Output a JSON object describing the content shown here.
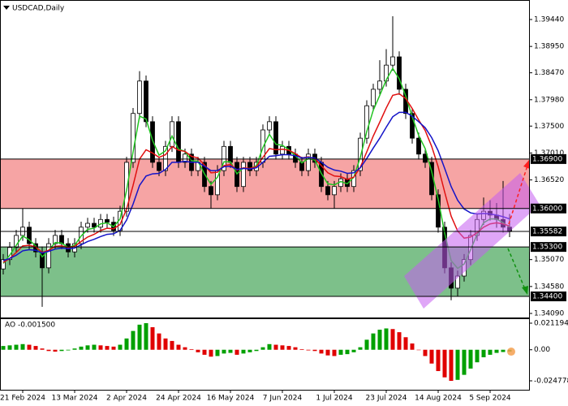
{
  "chart_data": [
    {
      "type": "candlestick",
      "title": "USDCAD,Daily",
      "categories": [
        null,
        null,
        null,
        "21 Feb 2024",
        null,
        null,
        null,
        null,
        null,
        null,
        null,
        "13 Mar 2024",
        null,
        null,
        null,
        null,
        null,
        null,
        null,
        "2 Apr 2024",
        null,
        null,
        null,
        null,
        null,
        null,
        null,
        "24 Apr 2024",
        null,
        null,
        null,
        null,
        null,
        null,
        null,
        "16 May 2024",
        null,
        null,
        null,
        null,
        null,
        null,
        null,
        "7 Jun 2024",
        null,
        null,
        null,
        null,
        null,
        null,
        null,
        "1 Jul 2024",
        null,
        null,
        null,
        null,
        null,
        null,
        null,
        "23 Jul 2024",
        null,
        null,
        null,
        null,
        null,
        null,
        null,
        "14 Aug 2024",
        null,
        null,
        null,
        null,
        null,
        null,
        null,
        "5 Sep 2024",
        null,
        null,
        null
      ],
      "open": [
        1.349,
        1.3507,
        1.3529,
        1.3551,
        1.3566,
        1.3536,
        1.3521,
        1.3492,
        1.3536,
        1.3551,
        1.3536,
        1.3521,
        1.3536,
        1.3566,
        1.3573,
        1.3566,
        1.358,
        1.3575,
        1.356,
        1.3595,
        1.3684,
        1.3773,
        1.3832,
        1.3758,
        1.3684,
        1.3669,
        1.3713,
        1.3758,
        1.3684,
        1.3699,
        1.3669,
        1.3684,
        1.364,
        1.3625,
        1.3669,
        1.3713,
        1.3684,
        1.364,
        1.3684,
        1.3669,
        1.3684,
        1.3743,
        1.3758,
        1.3699,
        1.3713,
        1.3699,
        1.3684,
        1.3669,
        1.3699,
        1.3684,
        1.364,
        1.3625,
        1.364,
        1.3654,
        1.364,
        1.3669,
        1.3728,
        1.3787,
        1.3817,
        1.3832,
        1.3861,
        1.3876,
        1.3817,
        1.3773,
        1.3728,
        1.3699,
        1.3684,
        1.3625,
        1.3566,
        1.3492,
        1.3455,
        1.3477,
        1.3507,
        1.3551,
        1.358,
        1.3595,
        1.3588,
        1.358,
        1.3566
      ],
      "high": [
        1.3517,
        1.3539,
        1.3561,
        1.36,
        1.3576,
        1.3546,
        1.3531,
        1.3546,
        1.3561,
        1.3561,
        1.3546,
        1.3546,
        1.3576,
        1.3583,
        1.3583,
        1.359,
        1.359,
        1.3585,
        1.3605,
        1.3694,
        1.3783,
        1.385,
        1.3842,
        1.3768,
        1.3694,
        1.3723,
        1.3768,
        1.3768,
        1.3709,
        1.3709,
        1.3694,
        1.3694,
        1.365,
        1.3679,
        1.3723,
        1.3723,
        1.3694,
        1.3694,
        1.3694,
        1.3694,
        1.3753,
        1.3768,
        1.3768,
        1.3723,
        1.3723,
        1.3709,
        1.3694,
        1.3709,
        1.3709,
        1.3694,
        1.365,
        1.365,
        1.3664,
        1.3664,
        1.3679,
        1.3738,
        1.3797,
        1.3827,
        1.387,
        1.389,
        1.395,
        1.3886,
        1.3827,
        1.3783,
        1.3738,
        1.3709,
        1.3694,
        1.3635,
        1.3576,
        1.3502,
        1.3487,
        1.3517,
        1.3561,
        1.359,
        1.362,
        1.3615,
        1.361,
        1.365,
        1.359
      ],
      "low": [
        1.348,
        1.3497,
        1.3519,
        1.3541,
        1.3526,
        1.3511,
        1.3421,
        1.3482,
        1.3526,
        1.3526,
        1.3511,
        1.3511,
        1.3526,
        1.3556,
        1.3556,
        1.3556,
        1.3565,
        1.355,
        1.355,
        1.3585,
        1.3674,
        1.3763,
        1.3748,
        1.3674,
        1.3659,
        1.3659,
        1.3703,
        1.3674,
        1.3674,
        1.3659,
        1.3659,
        1.363,
        1.36,
        1.3615,
        1.3659,
        1.3674,
        1.363,
        1.363,
        1.3659,
        1.3659,
        1.3674,
        1.3733,
        1.3689,
        1.3689,
        1.3689,
        1.3674,
        1.3659,
        1.3659,
        1.3674,
        1.363,
        1.3615,
        1.36,
        1.363,
        1.363,
        1.363,
        1.3659,
        1.3718,
        1.3777,
        1.3807,
        1.3822,
        1.3851,
        1.3807,
        1.3763,
        1.3718,
        1.3689,
        1.3674,
        1.3615,
        1.3556,
        1.3482,
        1.3433,
        1.344,
        1.3467,
        1.3497,
        1.3541,
        1.357,
        1.3578,
        1.3565,
        1.3556,
        1.3548
      ],
      "close": [
        1.3507,
        1.3529,
        1.3551,
        1.3566,
        1.3536,
        1.3521,
        1.3492,
        1.3536,
        1.3551,
        1.3536,
        1.3521,
        1.3536,
        1.3566,
        1.3573,
        1.3566,
        1.358,
        1.3575,
        1.356,
        1.3595,
        1.3684,
        1.3773,
        1.3832,
        1.3758,
        1.3684,
        1.3669,
        1.3713,
        1.3758,
        1.3684,
        1.3699,
        1.3669,
        1.3684,
        1.364,
        1.3625,
        1.3669,
        1.3713,
        1.3684,
        1.364,
        1.3684,
        1.3669,
        1.3684,
        1.3743,
        1.3758,
        1.3699,
        1.3713,
        1.3699,
        1.3684,
        1.3669,
        1.3699,
        1.3684,
        1.364,
        1.3625,
        1.364,
        1.3654,
        1.364,
        1.3669,
        1.3728,
        1.3787,
        1.3817,
        1.3832,
        1.3861,
        1.3876,
        1.3817,
        1.3773,
        1.3728,
        1.3699,
        1.3684,
        1.3625,
        1.3566,
        1.3492,
        1.3455,
        1.3477,
        1.3507,
        1.3551,
        1.358,
        1.3595,
        1.3588,
        1.358,
        1.3566,
        1.3558
      ],
      "up_color": "#ffffff",
      "down_color": "#000000",
      "series": [
        {
          "color": "#22c422",
          "values": [
            1.35,
            1.3515,
            1.3533,
            1.355,
            1.3543,
            1.3532,
            1.3512,
            1.3524,
            1.3538,
            1.3537,
            1.3529,
            1.3533,
            1.355,
            1.3562,
            1.3564,
            1.3572,
            1.3574,
            1.3567,
            1.3581,
            1.3633,
            1.3703,
            1.3768,
            1.3763,
            1.3724,
            1.3697,
            1.3705,
            1.3732,
            1.3708,
            1.3704,
            1.3687,
            1.3686,
            1.3663,
            1.3644,
            1.3657,
            1.3685,
            1.3685,
            1.3663,
            1.3674,
            1.3672,
            1.3678,
            1.3711,
            1.3735,
            1.3717,
            1.3715,
            1.3707,
            1.3696,
            1.3683,
            1.3691,
            1.3688,
            1.3664,
            1.3645,
            1.3643,
            1.3649,
            1.3645,
            1.3657,
            1.3693,
            1.374,
            1.3779,
            1.3806,
            1.3834,
            1.3855,
            1.3836,
            1.3805,
            1.3767,
            1.3733,
            1.3709,
            1.3667,
            1.3617,
            1.3555,
            1.3505,
            1.3491,
            1.3499,
            1.3525,
            1.3553,
            1.3574,
            1.3581,
            1.3581,
            1.3574,
            1.3566
          ]
        },
        {
          "color": "#e01010",
          "values": [
            1.3502,
            1.3509,
            1.352,
            1.3532,
            1.3533,
            1.353,
            1.352,
            1.3524,
            1.3531,
            1.3532,
            1.3529,
            1.3531,
            1.354,
            1.3548,
            1.3553,
            1.356,
            1.3564,
            1.3563,
            1.3571,
            1.3599,
            1.3642,
            1.369,
            1.3707,
            1.3701,
            1.3693,
            1.3698,
            1.3713,
            1.3706,
            1.3704,
            1.3695,
            1.3692,
            1.3679,
            1.3665,
            1.3666,
            1.3678,
            1.368,
            1.367,
            1.3674,
            1.3673,
            1.3676,
            1.3693,
            1.3709,
            1.3707,
            1.3708,
            1.3706,
            1.37,
            1.3692,
            1.3694,
            1.3691,
            1.3678,
            1.3665,
            1.3659,
            1.3658,
            1.3653,
            1.3657,
            1.3675,
            1.3703,
            1.3732,
            1.3757,
            1.3783,
            1.3806,
            1.3809,
            1.38,
            1.3782,
            1.3761,
            1.3742,
            1.3713,
            1.3676,
            1.363,
            1.3586,
            1.3559,
            1.3546,
            1.3548,
            1.3556,
            1.3566,
            1.3572,
            1.3574,
            1.3572,
            1.3568
          ]
        },
        {
          "color": "#1414c8",
          "values": [
            1.3505,
            1.3509,
            1.3515,
            1.3523,
            1.3525,
            1.3524,
            1.3519,
            1.3522,
            1.3526,
            1.3528,
            1.3527,
            1.3528,
            1.3534,
            1.354,
            1.3544,
            1.3549,
            1.3553,
            1.3554,
            1.356,
            1.3579,
            1.3608,
            1.3642,
            1.3659,
            1.3663,
            1.3664,
            1.3671,
            1.3684,
            1.3684,
            1.3686,
            1.3684,
            1.3684,
            1.3677,
            1.3669,
            1.3669,
            1.3676,
            1.3677,
            1.3671,
            1.3673,
            1.3672,
            1.3674,
            1.3684,
            1.3695,
            1.3696,
            1.3698,
            1.3698,
            1.3696,
            1.3692,
            1.3693,
            1.3692,
            1.3684,
            1.3675,
            1.367,
            1.3668,
            1.3664,
            1.3665,
            1.3674,
            1.3691,
            1.371,
            1.3728,
            1.3748,
            1.3767,
            1.3775,
            1.3775,
            1.3768,
            1.3758,
            1.3747,
            1.3729,
            1.3705,
            1.3673,
            1.364,
            1.3615,
            1.3599,
            1.3592,
            1.359,
            1.3591,
            1.359,
            1.3588,
            1.3585,
            1.3581
          ]
        }
      ],
      "zones": [
        {
          "from": 1.369,
          "to": 1.36,
          "color": "#f6a4a4"
        },
        {
          "from": 1.353,
          "to": 1.344,
          "color": "#7dc08a"
        }
      ],
      "levels": [
        {
          "value": 1.369,
          "label": "1.36900"
        },
        {
          "value": 1.36,
          "label": "1.36000"
        },
        {
          "value": 1.35582,
          "label": "1.35582"
        },
        {
          "value": 1.353,
          "label": "1.35300"
        },
        {
          "value": 1.344,
          "label": "1.34400"
        }
      ],
      "ylim": [
        1.34016,
        1.39795
      ],
      "yticks": [
        {
          "value": 1.3944,
          "label": "1.39440"
        },
        {
          "value": 1.3895,
          "label": "1.38950"
        },
        {
          "value": 1.3847,
          "label": "1.38470"
        },
        {
          "value": 1.3798,
          "label": "1.37980"
        },
        {
          "value": 1.375,
          "label": "1.37500"
        },
        {
          "value": 1.3701,
          "label": "1.37010"
        },
        {
          "value": 1.3652,
          "label": "1.36520"
        },
        {
          "value": 1.3507,
          "label": "1.35070"
        },
        {
          "value": 1.3458,
          "label": "1.34580"
        },
        {
          "value": 1.3409,
          "label": "1.34090"
        }
      ]
    },
    {
      "type": "bar",
      "title": "AO -0.001500",
      "up_color": "#00a000",
      "down_color": "#e00000",
      "values": [
        0.003,
        0.0035,
        0.004,
        0.0045,
        0.004,
        0.003,
        0.001,
        -0.001,
        -0.0015,
        -0.001,
        -0.0005,
        0.001,
        0.0025,
        0.0035,
        0.004,
        0.0035,
        0.003,
        0.0025,
        0.004,
        0.009,
        0.015,
        0.02,
        0.0212,
        0.018,
        0.013,
        0.009,
        0.007,
        0.004,
        0.002,
        0.0005,
        -0.002,
        -0.004,
        -0.0055,
        -0.005,
        -0.003,
        -0.0025,
        -0.004,
        -0.003,
        -0.002,
        -0.001,
        0.002,
        0.0045,
        0.004,
        0.0035,
        0.003,
        0.002,
        0.0005,
        -0.0005,
        -0.001,
        -0.003,
        -0.0045,
        -0.005,
        -0.004,
        -0.0035,
        -0.002,
        0.002,
        0.008,
        0.013,
        0.016,
        0.017,
        0.0165,
        0.014,
        0.01,
        0.005,
        0.0,
        -0.005,
        -0.011,
        -0.017,
        -0.022,
        -0.0248,
        -0.024,
        -0.02,
        -0.015,
        -0.01,
        -0.006,
        -0.004,
        -0.0025,
        -0.0018,
        -0.0015
      ],
      "ylim": [
        -0.0319,
        0.02443
      ],
      "yticks": [
        0.021194,
        {
          "value": 0,
          "label": "0.00"
        },
        -0.024778
      ]
    }
  ]
}
